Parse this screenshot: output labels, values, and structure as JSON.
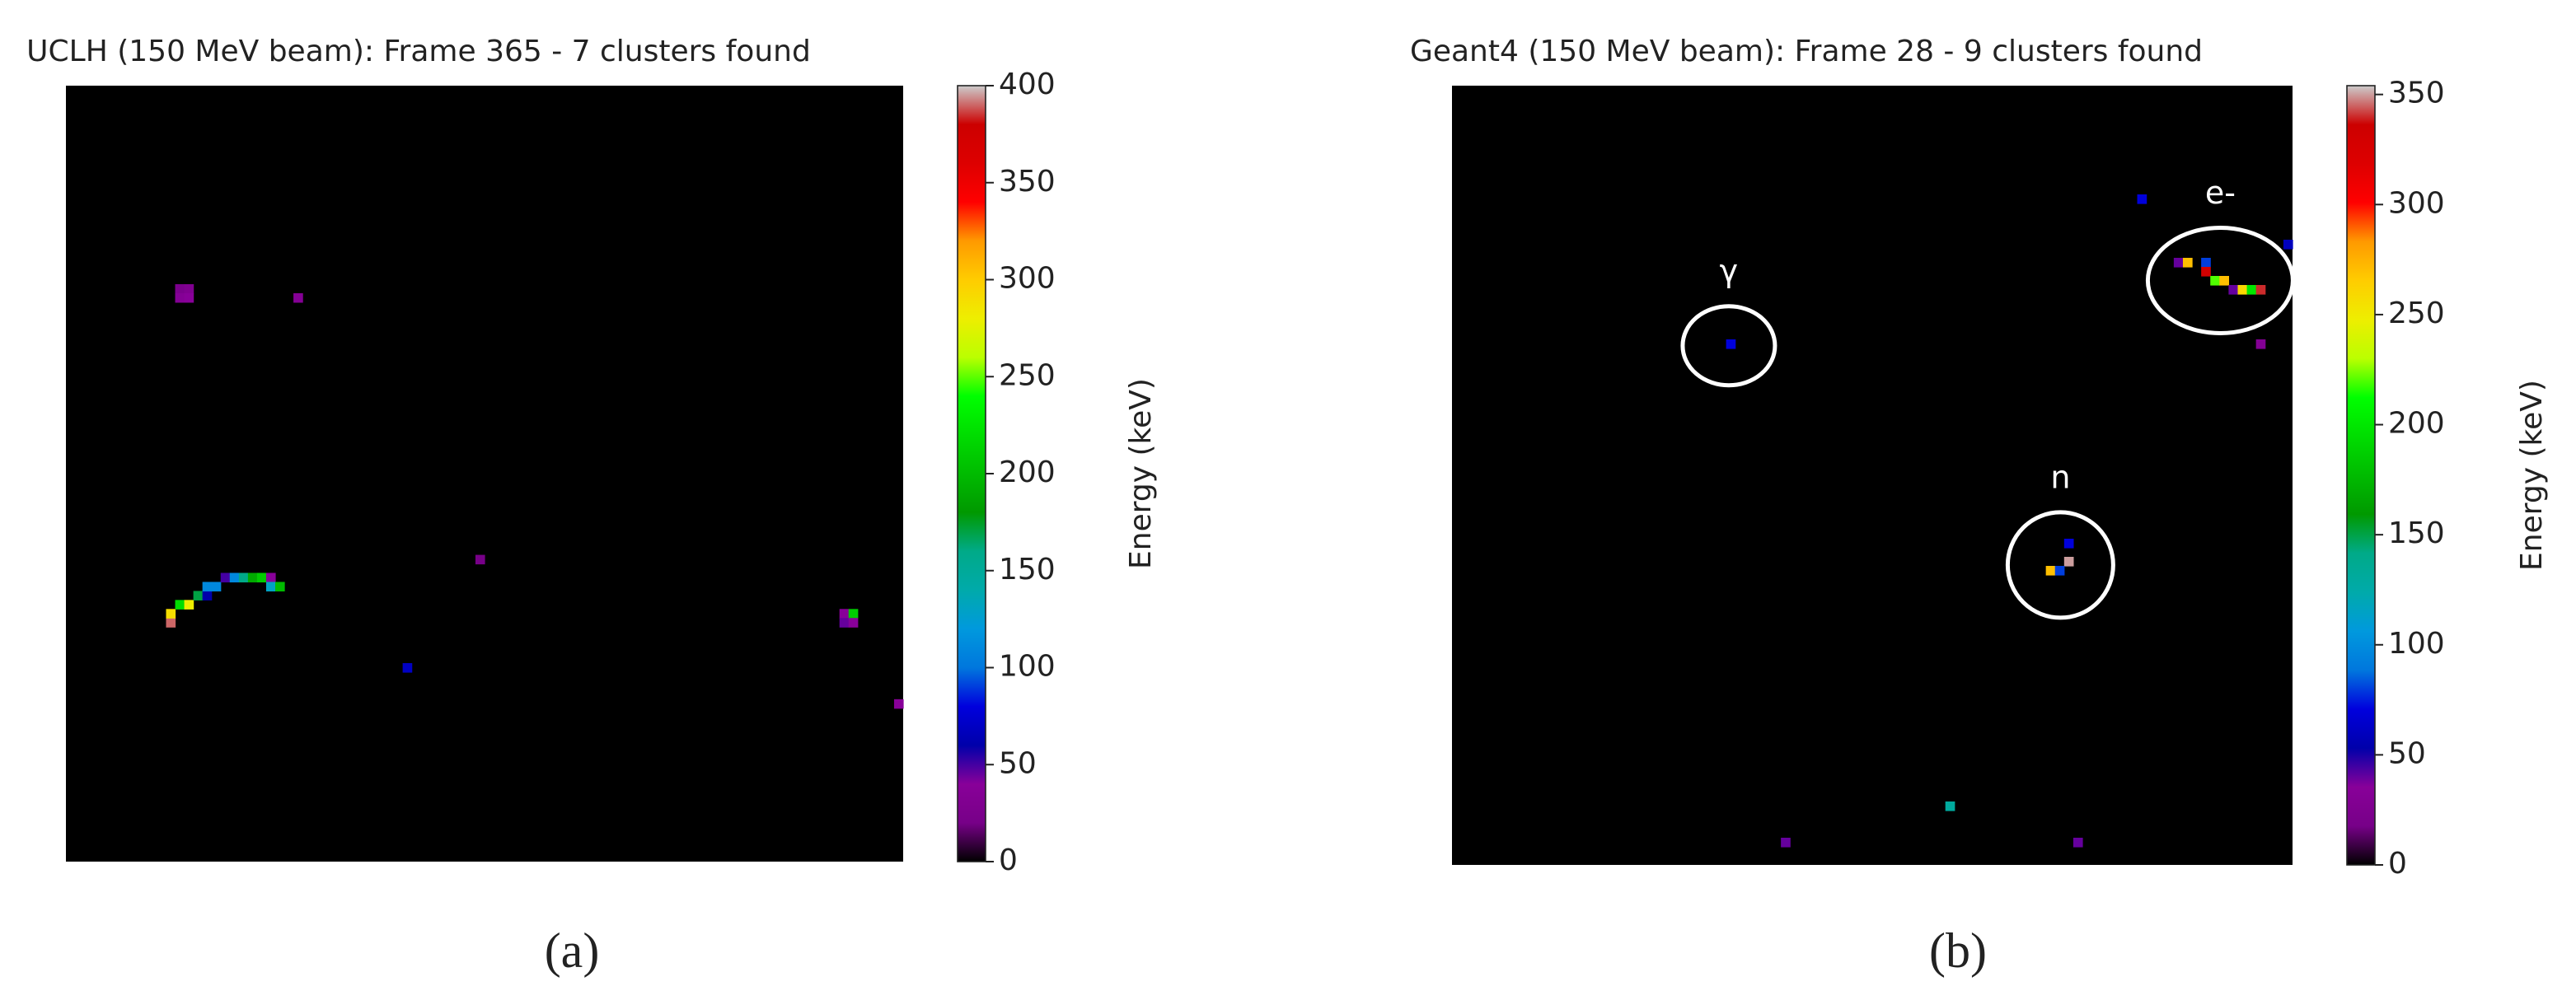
{
  "chart_data": [
    {
      "type": "heatmap",
      "title": "UCLH (150 MeV beam): Frame 365 - 7 clusters found",
      "caption": "(a)",
      "colormap": "nipy_spectral",
      "xlim": [
        0,
        92
      ],
      "ylim": [
        0,
        86
      ],
      "grid": false,
      "x": [
        12,
        13,
        12,
        13,
        25,
        11,
        11,
        12,
        13,
        14,
        15,
        15,
        16,
        17,
        18,
        19,
        20,
        21,
        22,
        22,
        23,
        45,
        37,
        85,
        86,
        85,
        86,
        91
      ],
      "y": [
        22,
        22,
        23,
        23,
        23,
        59,
        58,
        57,
        57,
        56,
        56,
        55,
        55,
        54,
        54,
        54,
        54,
        54,
        54,
        55,
        55,
        52,
        64,
        58,
        58,
        59,
        59,
        68
      ],
      "values": [
        25,
        30,
        35,
        40,
        35,
        390,
        290,
        220,
        280,
        170,
        60,
        110,
        110,
        50,
        110,
        160,
        190,
        210,
        40,
        130,
        200,
        20,
        70,
        40,
        210,
        45,
        40,
        40
      ],
      "clim": [
        0,
        400
      ],
      "cticks": [
        0,
        50,
        100,
        150,
        200,
        250,
        300,
        350,
        400
      ],
      "colorbar_label": "Energy (keV)"
    },
    {
      "type": "heatmap",
      "title": "Geant4 (150 MeV beam): Frame 28 - 9 clusters found",
      "caption": "(b)",
      "colormap": "nipy_spectral",
      "xlim": [
        0,
        92
      ],
      "ylim": [
        0,
        86
      ],
      "grid": false,
      "x": [
        30,
        75,
        91,
        79,
        80,
        82,
        82,
        83,
        84,
        85,
        86,
        87,
        88,
        88,
        67,
        67,
        65,
        66,
        54,
        36,
        68
      ],
      "y": [
        28,
        12,
        17,
        19,
        19,
        19,
        20,
        21,
        21,
        22,
        22,
        22,
        22,
        28,
        50,
        52,
        53,
        53,
        79,
        83,
        83
      ],
      "values": [
        70,
        70,
        60,
        40,
        270,
        80,
        330,
        220,
        270,
        40,
        260,
        200,
        340,
        30,
        70,
        350,
        270,
        80,
        130,
        40,
        40
      ],
      "clim": [
        0,
        354
      ],
      "cticks": [
        0,
        50,
        100,
        150,
        200,
        250,
        300,
        350
      ],
      "colorbar_label": "Energy (keV)",
      "annotations": [
        {
          "text": "γ",
          "x": 30.3,
          "y": 28.7
        },
        {
          "text": "e-",
          "x": 84.1,
          "y": 21.5
        },
        {
          "text": "n",
          "x": 66.6,
          "y": 52.9
        }
      ]
    }
  ]
}
